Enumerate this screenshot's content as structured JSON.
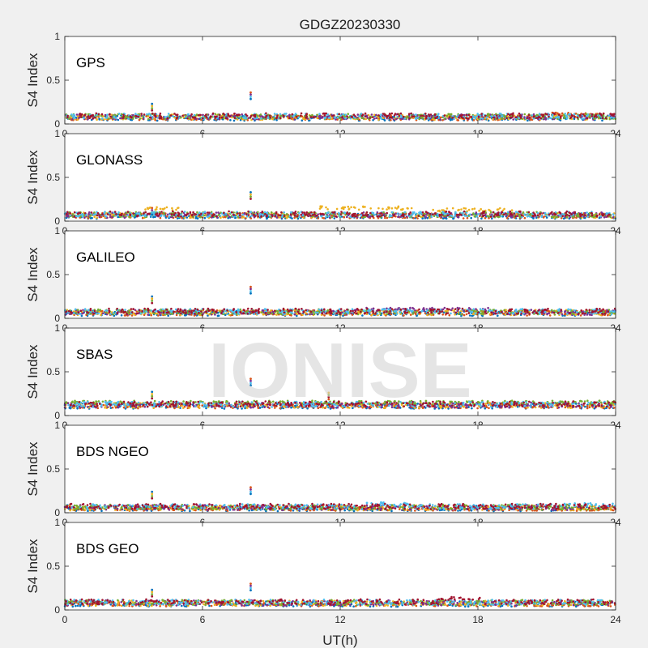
{
  "chart_data": {
    "type": "scatter",
    "title": "GDGZ20230330",
    "xlabel": "UT(h)",
    "ylabel": "S4 Index",
    "xlim": [
      0,
      24
    ],
    "ylim": [
      0,
      1
    ],
    "x_ticks": [
      "0",
      "6",
      "12",
      "18",
      "24"
    ],
    "y_ticks": [
      "0",
      "0.5",
      "1"
    ],
    "grid": false,
    "watermark": "IONISE",
    "colors": [
      "#0072BD",
      "#D95319",
      "#EDB120",
      "#7E2F8E",
      "#77AC30",
      "#4DBEEE",
      "#A2142F"
    ],
    "panels": [
      {
        "label": "GPS",
        "baseline": 0.08,
        "spikes": [
          {
            "x": 3.8,
            "y": 0.23
          },
          {
            "x": 8.1,
            "y": 0.36
          }
        ],
        "bumps": [
          {
            "from": 21.0,
            "to": 24.0,
            "y": 0.13
          }
        ]
      },
      {
        "label": "GLONASS",
        "baseline": 0.07,
        "spikes": [
          {
            "x": 8.1,
            "y": 0.33
          },
          {
            "x": 3.8,
            "y": 0.15
          }
        ],
        "bumps": [
          {
            "from": 3.5,
            "to": 5.0,
            "y": 0.16
          },
          {
            "from": 11.0,
            "to": 15.2,
            "y": 0.17
          },
          {
            "from": 16.0,
            "to": 19.5,
            "y": 0.15
          }
        ]
      },
      {
        "label": "GALILEO",
        "baseline": 0.07,
        "spikes": [
          {
            "x": 3.8,
            "y": 0.25
          },
          {
            "x": 8.1,
            "y": 0.36
          }
        ],
        "bumps": [
          {
            "from": 12.5,
            "to": 18.5,
            "y": 0.12
          }
        ]
      },
      {
        "label": "SBAS",
        "baseline": 0.12,
        "spikes": [
          {
            "x": 3.8,
            "y": 0.27
          },
          {
            "x": 8.1,
            "y": 0.42
          },
          {
            "x": 11.5,
            "y": 0.26
          }
        ],
        "bumps": [
          {
            "from": 0.0,
            "to": 24.0,
            "y": 0.17
          }
        ]
      },
      {
        "label": "BDS NGEO",
        "baseline": 0.06,
        "spikes": [
          {
            "x": 3.8,
            "y": 0.24
          },
          {
            "x": 8.1,
            "y": 0.29
          }
        ],
        "bumps": [
          {
            "from": 13.0,
            "to": 15.0,
            "y": 0.12
          },
          {
            "from": 21.5,
            "to": 24.0,
            "y": 0.11
          }
        ]
      },
      {
        "label": "BDS GEO",
        "baseline": 0.08,
        "spikes": [
          {
            "x": 3.8,
            "y": 0.23
          },
          {
            "x": 8.1,
            "y": 0.3
          }
        ],
        "bumps": [
          {
            "from": 16.3,
            "to": 18.3,
            "y": 0.15
          }
        ]
      }
    ]
  }
}
